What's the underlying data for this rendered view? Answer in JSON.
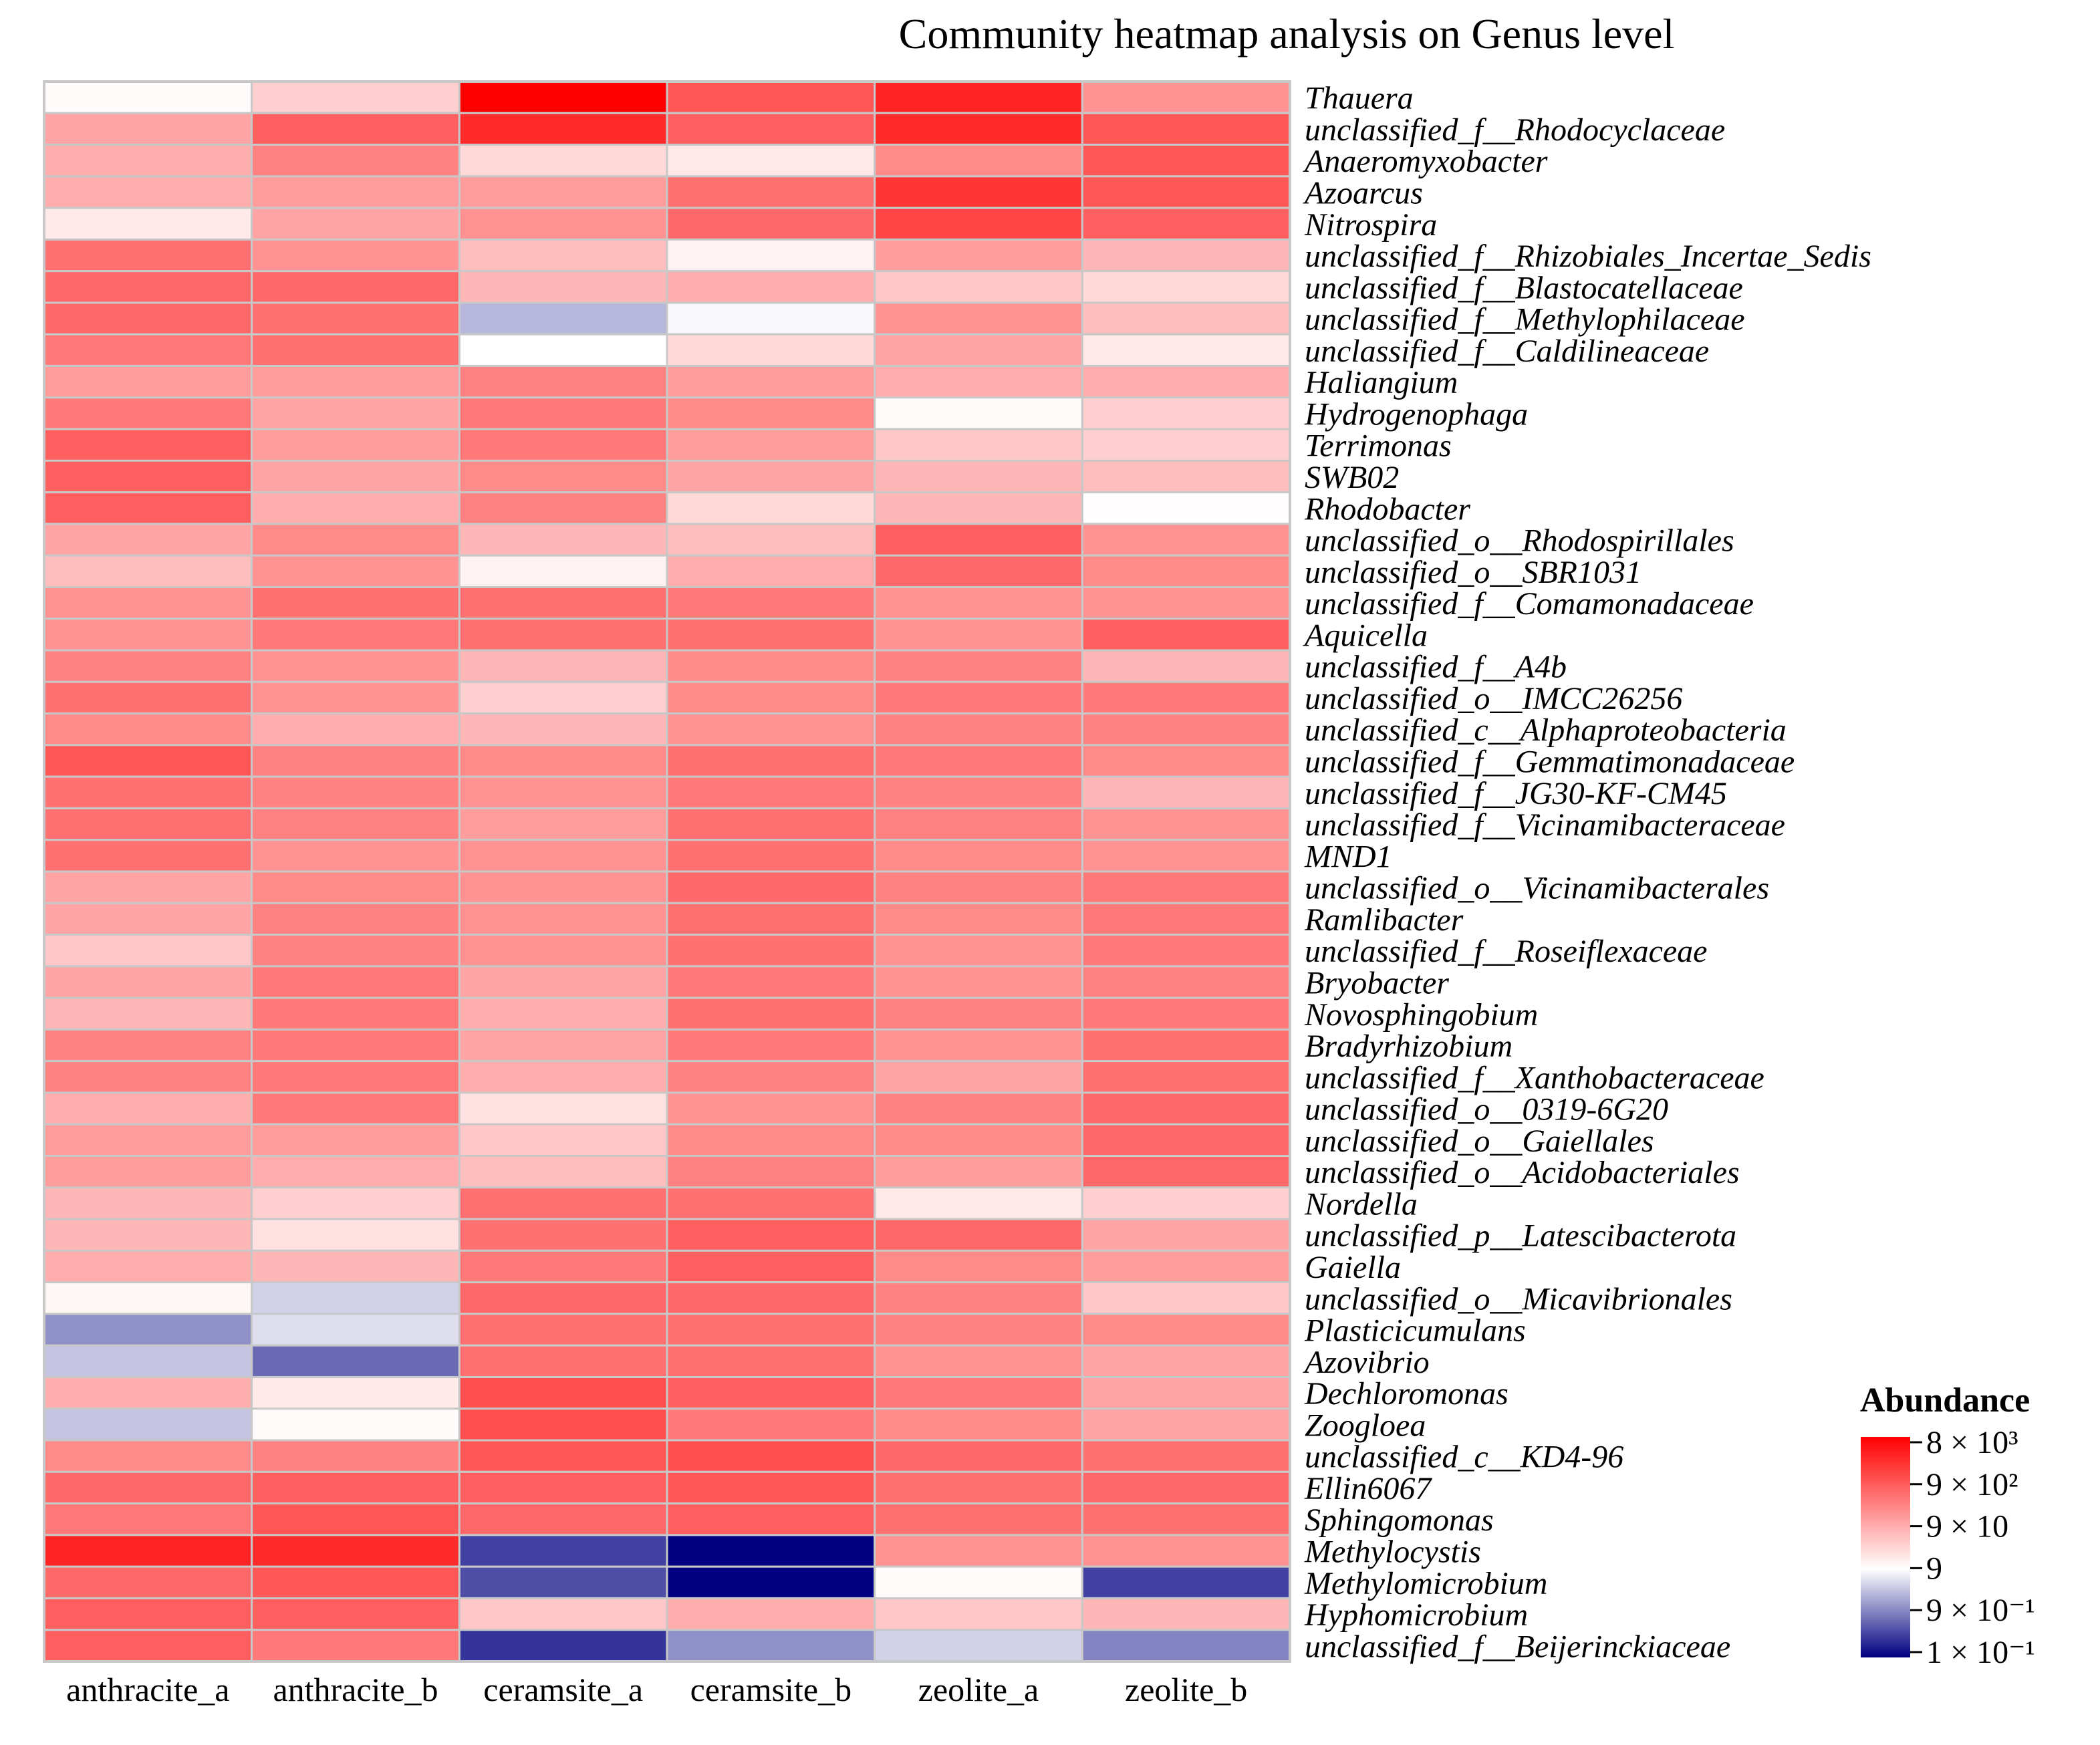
{
  "chart_data": {
    "type": "heatmap",
    "title": "Community heatmap analysis on Genus level",
    "scale": "log10 relative abundance",
    "columns": [
      "anthracite_a",
      "anthracite_b",
      "ceramsite_a",
      "ceramsite_b",
      "zeolite_a",
      "zeolite_b"
    ],
    "rows": [
      {
        "label": "Thauera",
        "values": [
          1.0,
          1.5,
          3.9,
          2.9,
          3.5,
          2.2
        ]
      },
      {
        "label": "unclassified_f__Rhodocyclaceae",
        "values": [
          2.0,
          2.8,
          3.4,
          2.8,
          3.4,
          2.9
        ]
      },
      {
        "label": "Anaeromyxobacter",
        "values": [
          1.9,
          2.4,
          1.4,
          1.2,
          2.3,
          2.9
        ]
      },
      {
        "label": "Azoarcus",
        "values": [
          1.9,
          2.1,
          2.1,
          2.6,
          3.3,
          2.9
        ]
      },
      {
        "label": "Nitrospira",
        "values": [
          1.2,
          2.0,
          2.2,
          2.7,
          3.1,
          2.8
        ]
      },
      {
        "label": "unclassified_f__Rhizobiales_Incertae_Sedis",
        "values": [
          2.6,
          2.2,
          1.7,
          1.1,
          2.1,
          1.8
        ]
      },
      {
        "label": "unclassified_f__Blastocatellaceae",
        "values": [
          2.7,
          2.7,
          1.8,
          1.9,
          1.6,
          1.4
        ]
      },
      {
        "label": "unclassified_f__Methylophilaceae",
        "values": [
          2.7,
          2.6,
          0.4,
          0.9,
          2.2,
          1.7
        ]
      },
      {
        "label": "unclassified_f__Caldilineaceae",
        "values": [
          2.5,
          2.6,
          0.95,
          1.4,
          2.0,
          1.2
        ]
      },
      {
        "label": "Haliangium",
        "values": [
          2.1,
          2.1,
          2.4,
          2.1,
          1.9,
          1.9
        ]
      },
      {
        "label": "Hydrogenophaga",
        "values": [
          2.5,
          2.0,
          2.5,
          2.3,
          1.0,
          1.5
        ]
      },
      {
        "label": "Terrimonas",
        "values": [
          2.8,
          2.1,
          2.5,
          2.1,
          1.6,
          1.5
        ]
      },
      {
        "label": "SWB02",
        "values": [
          2.8,
          2.0,
          2.3,
          2.0,
          1.8,
          1.7
        ]
      },
      {
        "label": "Rhodobacter",
        "values": [
          2.8,
          1.9,
          2.4,
          1.4,
          1.8,
          0.97
        ]
      },
      {
        "label": "unclassified_o__Rhodospirillales",
        "values": [
          2.0,
          2.3,
          1.8,
          1.7,
          2.8,
          2.2
        ]
      },
      {
        "label": "unclassified_o__SBR1031",
        "values": [
          1.7,
          2.2,
          1.1,
          1.9,
          2.7,
          2.3
        ]
      },
      {
        "label": "unclassified_f__Comamonadaceae",
        "values": [
          2.2,
          2.6,
          2.6,
          2.5,
          2.2,
          2.2
        ]
      },
      {
        "label": "Aquicella",
        "values": [
          2.2,
          2.5,
          2.6,
          2.6,
          2.2,
          2.8
        ]
      },
      {
        "label": "unclassified_f__A4b",
        "values": [
          2.4,
          2.2,
          1.8,
          2.3,
          2.4,
          1.8
        ]
      },
      {
        "label": "unclassified_o__IMCC26256",
        "values": [
          2.6,
          2.2,
          1.5,
          2.3,
          2.5,
          2.5
        ]
      },
      {
        "label": "unclassified_c__Alphaproteobacteria",
        "values": [
          2.3,
          1.9,
          1.8,
          2.2,
          2.4,
          2.4
        ]
      },
      {
        "label": "unclassified_f__Gemmatimonadaceae",
        "values": [
          2.9,
          2.4,
          2.3,
          2.6,
          2.5,
          2.3
        ]
      },
      {
        "label": "unclassified_f__JG30-KF-CM45",
        "values": [
          2.6,
          2.4,
          2.2,
          2.5,
          2.4,
          1.8
        ]
      },
      {
        "label": "unclassified_f__Vicinamibacteraceae",
        "values": [
          2.6,
          2.4,
          2.1,
          2.6,
          2.4,
          2.2
        ]
      },
      {
        "label": "MND1",
        "values": [
          2.6,
          2.2,
          2.2,
          2.6,
          2.3,
          2.2
        ]
      },
      {
        "label": "unclassified_o__Vicinamibacterales",
        "values": [
          2.0,
          2.3,
          2.2,
          2.7,
          2.4,
          2.5
        ]
      },
      {
        "label": "Ramlibacter",
        "values": [
          2.0,
          2.4,
          2.2,
          2.6,
          2.3,
          2.5
        ]
      },
      {
        "label": "unclassified_f__Roseiflexaceae",
        "values": [
          1.6,
          2.4,
          2.2,
          2.6,
          2.2,
          2.5
        ]
      },
      {
        "label": "Bryobacter",
        "values": [
          2.0,
          2.5,
          2.0,
          2.5,
          2.2,
          2.4
        ]
      },
      {
        "label": "Novosphingobium",
        "values": [
          1.8,
          2.5,
          1.9,
          2.6,
          2.4,
          2.5
        ]
      },
      {
        "label": "Bradyrhizobium",
        "values": [
          2.4,
          2.5,
          2.0,
          2.5,
          2.2,
          2.6
        ]
      },
      {
        "label": "unclassified_f__Xanthobacteraceae",
        "values": [
          2.4,
          2.5,
          1.9,
          2.4,
          2.0,
          2.6
        ]
      },
      {
        "label": "unclassified_o__0319-6G20",
        "values": [
          1.9,
          2.5,
          1.3,
          2.2,
          2.4,
          2.7
        ]
      },
      {
        "label": "unclassified_o__Gaiellales",
        "values": [
          2.1,
          2.1,
          1.6,
          2.3,
          2.3,
          2.7
        ]
      },
      {
        "label": "unclassified_o__Acidobacteriales",
        "values": [
          2.1,
          1.9,
          1.7,
          2.4,
          2.1,
          2.7
        ]
      },
      {
        "label": "Nordella",
        "values": [
          1.8,
          1.5,
          2.6,
          2.6,
          1.2,
          1.5
        ]
      },
      {
        "label": "unclassified_p__Latescibacterota",
        "values": [
          1.8,
          1.3,
          2.6,
          2.8,
          2.7,
          2.0
        ]
      },
      {
        "label": "Gaiella",
        "values": [
          1.9,
          1.8,
          2.5,
          2.8,
          2.3,
          2.1
        ]
      },
      {
        "label": "unclassified_o__Micavibrionales",
        "values": [
          1.05,
          0.6,
          2.7,
          2.7,
          2.4,
          1.6
        ]
      },
      {
        "label": "Plasticicumulans",
        "values": [
          0.1,
          0.7,
          2.6,
          2.6,
          2.4,
          2.3
        ]
      },
      {
        "label": "Azovibrio",
        "values": [
          0.5,
          -0.2,
          2.6,
          2.6,
          2.2,
          2.0
        ]
      },
      {
        "label": "Dechloromonas",
        "values": [
          1.9,
          1.2,
          3.0,
          2.8,
          2.5,
          2.0
        ]
      },
      {
        "label": "Zoogloea",
        "values": [
          0.5,
          1.0,
          3.0,
          2.5,
          2.3,
          2.0
        ]
      },
      {
        "label": "unclassified_c__KD4-96",
        "values": [
          2.3,
          2.4,
          2.9,
          3.0,
          2.7,
          2.6
        ]
      },
      {
        "label": "Ellin6067",
        "values": [
          2.7,
          2.8,
          2.8,
          2.9,
          2.6,
          2.7
        ]
      },
      {
        "label": "Sphingomonas",
        "values": [
          2.5,
          2.9,
          2.7,
          2.8,
          2.6,
          2.6
        ]
      },
      {
        "label": "Methylocystis",
        "values": [
          3.5,
          3.4,
          -0.5,
          -1.0,
          2.2,
          2.2
        ]
      },
      {
        "label": "Methylomicrobium",
        "values": [
          2.7,
          2.9,
          -0.4,
          -1.0,
          1.0,
          -0.5
        ]
      },
      {
        "label": "Hyphomicrobium",
        "values": [
          2.8,
          2.8,
          1.6,
          1.9,
          1.6,
          1.8
        ]
      },
      {
        "label": "unclassified_f__Beijerinckiaceae",
        "values": [
          2.8,
          2.5,
          -0.6,
          0.1,
          0.6,
          0.0
        ]
      }
    ],
    "legend": {
      "title": "Abundance",
      "placement": "bottom-right",
      "ticks": [
        "8 × 10³",
        "9 × 10²",
        "9 × 10",
        "9",
        "9 × 10⁻¹",
        "1 × 10⁻¹"
      ],
      "colors": {
        "low": "#000080",
        "mid": "#ffffff",
        "high": "#ff0000"
      },
      "range": [
        -1.0,
        3.9
      ],
      "midpoint": 0.95
    }
  }
}
